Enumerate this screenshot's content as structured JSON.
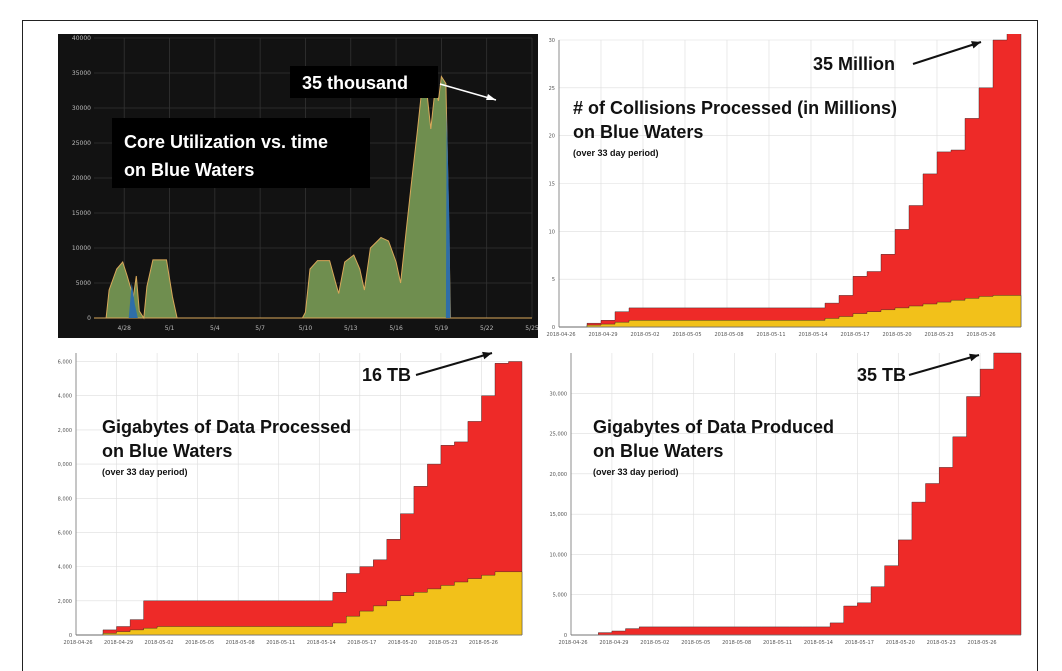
{
  "colors": {
    "total": "#ee2a28",
    "subset": "#f2c11a",
    "core_fill": "#6f8e4f",
    "core_blue": "#2f6ea8",
    "core_edge": "#d9a85a"
  },
  "chart_data": [
    {
      "type": "area",
      "annotations": [
        "Core Utilization vs. time",
        "on Blue Waters",
        "35 thousand"
      ],
      "x_ticks": [
        "4/28",
        "5/1",
        "5/4",
        "5/7",
        "5/10",
        "5/13",
        "5/16",
        "5/19",
        "5/22",
        "5/25"
      ],
      "y_ticks": [
        "0",
        "5000",
        "10000",
        "15000",
        "20000",
        "25000",
        "30000",
        "35000",
        "40000"
      ],
      "ylim": [
        0,
        40000
      ],
      "xlim": [
        26,
        55
      ],
      "grid": true,
      "series": [
        {
          "values": [
            [
              26,
              0
            ],
            [
              26.8,
              0
            ],
            [
              27,
              4000
            ],
            [
              27.5,
              7000
            ],
            [
              27.9,
              8000
            ],
            [
              28.2,
              6000
            ],
            [
              28.6,
              3000
            ],
            [
              28.8,
              6000
            ],
            [
              29,
              1000
            ],
            [
              29.3,
              0
            ],
            [
              29.5,
              4500
            ],
            [
              29.9,
              8300
            ],
            [
              30.8,
              8300
            ],
            [
              31.2,
              3000
            ],
            [
              31.5,
              0
            ],
            [
              39.8,
              0
            ],
            [
              40,
              800
            ],
            [
              40.3,
              7000
            ],
            [
              40.8,
              8200
            ],
            [
              41.6,
              8200
            ],
            [
              42,
              5000
            ],
            [
              42.2,
              3500
            ],
            [
              42.6,
              8000
            ],
            [
              43.2,
              9000
            ],
            [
              43.6,
              7000
            ],
            [
              43.9,
              4000
            ],
            [
              44.3,
              10000
            ],
            [
              45,
              11500
            ],
            [
              45.5,
              11000
            ],
            [
              46,
              8000
            ],
            [
              46.3,
              5000
            ],
            [
              46.7,
              13000
            ],
            [
              47,
              19000
            ],
            [
              47.4,
              26500
            ],
            [
              47.7,
              32500
            ],
            [
              48,
              33000
            ],
            [
              48.3,
              27000
            ],
            [
              48.6,
              33000
            ],
            [
              48.8,
              31000
            ],
            [
              49,
              34500
            ],
            [
              49.3,
              33500
            ],
            [
              49.5,
              12000
            ],
            [
              49.6,
              0
            ],
            [
              55,
              0
            ]
          ]
        }
      ]
    },
    {
      "type": "step_area",
      "annotations": [
        "# of Collisions Processed (in Millions)",
        "on Blue Waters",
        "(over 33 day period)",
        "35 Million"
      ],
      "x_ticks": [
        "2018-04-26",
        "2018-04-29",
        "2018-05-02",
        "2018-05-05",
        "2018-05-08",
        "2018-05-11",
        "2018-05-14",
        "2018-05-17",
        "2018-05-20",
        "2018-05-23",
        "2018-05-26"
      ],
      "y_ticks": [
        "0",
        "5",
        "10",
        "15",
        "20",
        "25",
        "30"
      ],
      "ylim": [
        0,
        30
      ],
      "grid": true,
      "series": [
        {
          "values": [
            0,
            0,
            0.4,
            0.7,
            1.6,
            2.0,
            2.0,
            2.0,
            2.0,
            2.0,
            2.0,
            2.0,
            2.0,
            2.0,
            2.0,
            2.0,
            2.0,
            2.0,
            2.0,
            2.5,
            3.3,
            5.3,
            5.8,
            7.6,
            10.2,
            12.7,
            16.0,
            18.3,
            18.5,
            21.8,
            25.0,
            30.0,
            35.0
          ]
        },
        {
          "values": [
            0,
            0,
            0.2,
            0.3,
            0.5,
            0.7,
            0.7,
            0.7,
            0.7,
            0.7,
            0.7,
            0.7,
            0.7,
            0.7,
            0.7,
            0.7,
            0.7,
            0.7,
            0.7,
            0.9,
            1.1,
            1.4,
            1.6,
            1.8,
            2.0,
            2.2,
            2.4,
            2.6,
            2.8,
            3.0,
            3.2,
            3.3,
            3.3
          ]
        }
      ]
    },
    {
      "type": "step_area",
      "annotations": [
        "Gigabytes of Data Processed",
        "on Blue Waters",
        "(over 33 day period)",
        "16 TB"
      ],
      "x_ticks": [
        "2018-04-26",
        "2018-04-29",
        "2018-05-02",
        "2018-05-05",
        "2018-05-08",
        "2018-05-11",
        "2018-05-14",
        "2018-05-17",
        "2018-05-20",
        "2018-05-23",
        "2018-05-26"
      ],
      "y_ticks": [
        "0",
        "2,000",
        "4,000",
        "6,000",
        "8,000",
        "10,000",
        "12,000",
        "14,000",
        "16,000"
      ],
      "ylim": [
        0,
        16500
      ],
      "grid": true,
      "series": [
        {
          "values": [
            0,
            0,
            300,
            500,
            900,
            2000,
            2000,
            2000,
            2000,
            2000,
            2000,
            2000,
            2000,
            2000,
            2000,
            2000,
            2000,
            2000,
            2000,
            2500,
            3600,
            4000,
            4400,
            5600,
            7100,
            8700,
            10000,
            11100,
            11300,
            12500,
            14000,
            15900,
            16000
          ]
        },
        {
          "values": [
            0,
            0,
            100,
            200,
            300,
            400,
            500,
            500,
            500,
            500,
            500,
            500,
            500,
            500,
            500,
            500,
            500,
            500,
            500,
            700,
            1100,
            1400,
            1700,
            2000,
            2300,
            2500,
            2700,
            2900,
            3100,
            3300,
            3500,
            3700,
            3700
          ]
        }
      ]
    },
    {
      "type": "step_area",
      "annotations": [
        "Gigabytes of Data Produced",
        "on Blue Waters",
        "(over 33 day period)",
        "35 TB"
      ],
      "x_ticks": [
        "2018-04-26",
        "2018-04-29",
        "2018-05-02",
        "2018-05-05",
        "2018-05-08",
        "2018-05-11",
        "2018-05-14",
        "2018-05-17",
        "2018-05-20",
        "2018-05-23",
        "2018-05-26"
      ],
      "y_ticks": [
        "0",
        "5,000",
        "10,000",
        "15,000",
        "20,000",
        "25,000",
        "30,000"
      ],
      "ylim": [
        0,
        35000
      ],
      "grid": true,
      "series": [
        {
          "values": [
            0,
            0,
            300,
            500,
            800,
            1000,
            1000,
            1000,
            1000,
            1000,
            1000,
            1000,
            1000,
            1000,
            1000,
            1000,
            1000,
            1000,
            1000,
            1500,
            3600,
            4000,
            6000,
            8600,
            11800,
            16500,
            18800,
            20800,
            24600,
            29600,
            33000,
            35000,
            35000
          ]
        }
      ]
    }
  ]
}
